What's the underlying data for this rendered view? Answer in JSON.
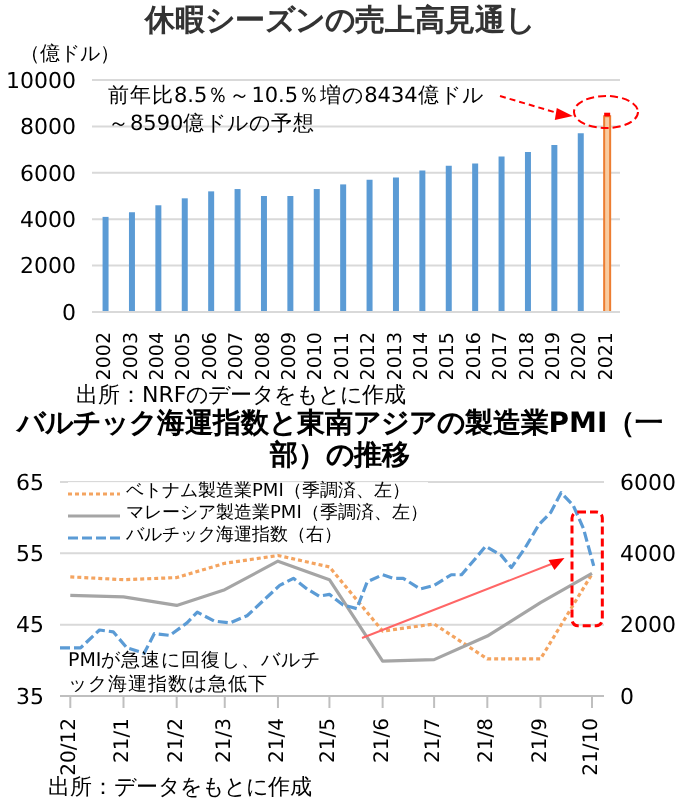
{
  "chart_data": [
    {
      "type": "bar",
      "title": "休暇シーズンの売上高見通し",
      "ylabel": "（億ドル）",
      "categories": [
        "2002",
        "2003",
        "2004",
        "2005",
        "2006",
        "2007",
        "2008",
        "2009",
        "2010",
        "2011",
        "2012",
        "2013",
        "2014",
        "2015",
        "2016",
        "2017",
        "2018",
        "2019",
        "2020",
        "2021"
      ],
      "stacked": true,
      "series": [
        {
          "values": [
            4100,
            4300,
            4600,
            4900,
            5200,
            5300,
            5000,
            5000,
            5300,
            5500,
            5700,
            5800,
            6100,
            6300,
            6400,
            6700,
            6900,
            7200,
            7700,
            8434
          ],
          "colors": [
            "#5b9bd5",
            "#5b9bd5",
            "#5b9bd5",
            "#5b9bd5",
            "#5b9bd5",
            "#5b9bd5",
            "#5b9bd5",
            "#5b9bd5",
            "#5b9bd5",
            "#5b9bd5",
            "#5b9bd5",
            "#5b9bd5",
            "#5b9bd5",
            "#5b9bd5",
            "#5b9bd5",
            "#5b9bd5",
            "#5b9bd5",
            "#5b9bd5",
            "#5b9bd5",
            "#f8cba0"
          ]
        },
        {
          "values": [
            null,
            null,
            null,
            null,
            null,
            null,
            null,
            null,
            null,
            null,
            null,
            null,
            null,
            null,
            null,
            null,
            null,
            null,
            null,
            156
          ],
          "color": "#ff0000"
        }
      ],
      "ylim": [
        0,
        10000
      ],
      "yticks": [
        0,
        2000,
        4000,
        6000,
        8000,
        10000
      ],
      "grid": "y",
      "annotations": [
        "前年比8.5％～10.5％増の8434億ドル～8590億ドルの予想",
        "出所：NRFのデータをもとに作成"
      ]
    },
    {
      "type": "line",
      "title": "バルチック海運指数と東南アジアの製造業PMI（一部）の推移",
      "series": [
        {
          "name": "ベトナム製造業PMI（季調済、左）",
          "color": "#f4a460",
          "line_style": "dotted",
          "x": [
            "2020-12",
            "2021-01",
            "2021-02",
            "2021-03",
            "2021-04",
            "2021-05",
            "2021-06",
            "2021-07",
            "2021-08",
            "2021-09",
            "2021-10"
          ],
          "values": [
            51.7,
            51.3,
            51.6,
            53.6,
            54.7,
            53.1,
            44.1,
            45.1,
            40.2,
            40.2,
            52.1
          ]
        },
        {
          "name": "マレーシア製造業PMI（季調済、左）",
          "color": "#a5a5a5",
          "line_style": "solid",
          "x": [
            "2020-12",
            "2021-01",
            "2021-02",
            "2021-03",
            "2021-04",
            "2021-05",
            "2021-06",
            "2021-07",
            "2021-08",
            "2021-09",
            "2021-10"
          ],
          "values": [
            49.1,
            48.9,
            47.7,
            49.9,
            53.9,
            51.3,
            39.9,
            40.1,
            43.4,
            48.1,
            52.2
          ]
        },
        {
          "name": "バルチック海運指数（右）",
          "color": "#5b9bd5",
          "line_style": "dashed",
          "axis": "y2",
          "x": [
            "2020-11-25",
            "2020-12-07",
            "2020-12-18",
            "2020-12-26",
            "2021-01-03",
            "2021-01-13",
            "2021-01-19",
            "2021-01-28",
            "2021-02-07",
            "2021-02-13",
            "2021-02-23",
            "2021-03-04",
            "2021-03-14",
            "2021-03-24",
            "2021-04-02",
            "2021-04-10",
            "2021-04-18",
            "2021-04-25",
            "2021-05-01",
            "2021-05-09",
            "2021-05-17",
            "2021-05-23",
            "2021-06-01",
            "2021-06-07",
            "2021-06-13",
            "2021-06-23",
            "2021-07-01",
            "2021-07-11",
            "2021-07-17",
            "2021-07-25",
            "2021-07-31",
            "2021-08-09",
            "2021-08-15",
            "2021-08-23",
            "2021-08-31",
            "2021-09-07",
            "2021-09-13",
            "2021-09-20",
            "2021-09-26",
            "2021-10-02"
          ],
          "values": [
            1350,
            1350,
            1850,
            1800,
            1350,
            1200,
            1750,
            1700,
            2050,
            2350,
            2100,
            2050,
            2250,
            2700,
            3100,
            3300,
            3000,
            2800,
            2850,
            2550,
            2450,
            3200,
            3400,
            3300,
            3300,
            3000,
            3100,
            3400,
            3400,
            3850,
            4200,
            3950,
            3600,
            4150,
            4800,
            5150,
            5700,
            5350,
            4700,
            3650
          ]
        }
      ],
      "xlim": [
        "2020-11-25",
        "2021-10-08"
      ],
      "xticks": [
        {
          "value": "2020-12",
          "label": "20/12"
        },
        {
          "value": "2021-01",
          "label": "21/1"
        },
        {
          "value": "2021-02",
          "label": "21/2"
        },
        {
          "value": "2021-03",
          "label": "21/3"
        },
        {
          "value": "2021-04",
          "label": "21/4"
        },
        {
          "value": "2021-05",
          "label": "21/5"
        },
        {
          "value": "2021-06",
          "label": "21/6"
        },
        {
          "value": "2021-07",
          "label": "21/7"
        },
        {
          "value": "2021-08",
          "label": "21/8"
        },
        {
          "value": "2021-09",
          "label": "21/9"
        },
        {
          "value": "2021-10",
          "label": "21/10"
        }
      ],
      "ylim": [
        35,
        65
      ],
      "yticks": [
        35,
        45,
        55,
        65
      ],
      "y2lim": [
        0,
        6000
      ],
      "y2ticks": [
        0,
        2000,
        4000,
        6000
      ],
      "grid": "y",
      "legend": "top left",
      "annotations": [
        "PMIが急速に回復し、バルチック海運指数は急低下",
        "出所：データをもとに作成"
      ]
    }
  ]
}
